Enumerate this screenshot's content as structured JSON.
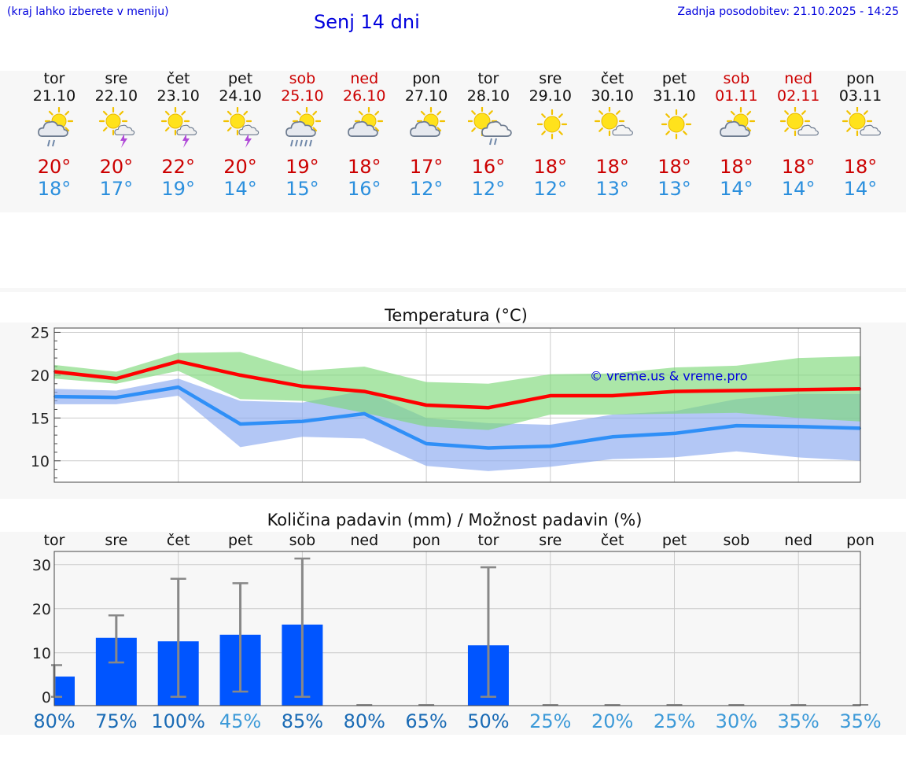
{
  "header": {
    "hint": "(kraj lahko izberete v meniju)",
    "title": "Senj 14 dni",
    "updated": "Zadnja posodobitev: 21.10.2025 - 14:25"
  },
  "days": [
    {
      "name": "tor",
      "date": "21.10",
      "weekend": false,
      "icon": "partly-cloudy-rain-icon",
      "max": "20°",
      "min": "18°",
      "pct": "80%",
      "pct_color": "#1a6bb5"
    },
    {
      "name": "sre",
      "date": "22.10",
      "weekend": false,
      "icon": "sun-cloud-thunder-icon",
      "max": "20°",
      "min": "17°",
      "pct": "75%",
      "pct_color": "#1a6bb5"
    },
    {
      "name": "čet",
      "date": "23.10",
      "weekend": false,
      "icon": "sun-cloud-thunder-icon",
      "max": "22°",
      "min": "19°",
      "pct": "100%",
      "pct_color": "#1a6bb5"
    },
    {
      "name": "pet",
      "date": "24.10",
      "weekend": false,
      "icon": "sun-cloud-thunder-icon",
      "max": "20°",
      "min": "14°",
      "pct": "45%",
      "pct_color": "#3d9ad8"
    },
    {
      "name": "sob",
      "date": "25.10",
      "weekend": true,
      "icon": "partly-cloudy-heavy-rain-icon",
      "max": "19°",
      "min": "15°",
      "pct": "85%",
      "pct_color": "#1a6bb5"
    },
    {
      "name": "ned",
      "date": "26.10",
      "weekend": true,
      "icon": "partly-cloudy-icon",
      "max": "18°",
      "min": "16°",
      "pct": "80%",
      "pct_color": "#1a6bb5"
    },
    {
      "name": "pon",
      "date": "27.10",
      "weekend": false,
      "icon": "partly-cloudy-icon",
      "max": "17°",
      "min": "12°",
      "pct": "65%",
      "pct_color": "#1a6bb5"
    },
    {
      "name": "tor",
      "date": "28.10",
      "weekend": false,
      "icon": "sun-cloud-rain-icon",
      "max": "16°",
      "min": "12°",
      "pct": "50%",
      "pct_color": "#1a6bb5"
    },
    {
      "name": "sre",
      "date": "29.10",
      "weekend": false,
      "icon": "sun-icon",
      "max": "18°",
      "min": "12°",
      "pct": "25%",
      "pct_color": "#3d9ad8"
    },
    {
      "name": "čet",
      "date": "30.10",
      "weekend": false,
      "icon": "sun-small-cloud-icon",
      "max": "18°",
      "min": "13°",
      "pct": "20%",
      "pct_color": "#3d9ad8"
    },
    {
      "name": "pet",
      "date": "31.10",
      "weekend": false,
      "icon": "sun-icon",
      "max": "18°",
      "min": "13°",
      "pct": "25%",
      "pct_color": "#3d9ad8"
    },
    {
      "name": "sob",
      "date": "01.11",
      "weekend": true,
      "icon": "partly-cloudy-icon",
      "max": "18°",
      "min": "14°",
      "pct": "30%",
      "pct_color": "#3d9ad8"
    },
    {
      "name": "ned",
      "date": "02.11",
      "weekend": true,
      "icon": "sun-small-cloud-icon",
      "max": "18°",
      "min": "14°",
      "pct": "35%",
      "pct_color": "#3d9ad8"
    },
    {
      "name": "pon",
      "date": "03.11",
      "weekend": false,
      "icon": "sun-small-cloud-icon",
      "max": "18°",
      "min": "14°",
      "pct": "35%",
      "pct_color": "#3d9ad8"
    }
  ],
  "chart_data": [
    {
      "type": "line",
      "title": "Temperatura (°C)",
      "watermark": "© vreme.us & vreme.pro",
      "ylim": [
        7.5,
        25.5
      ],
      "yticks": [
        10,
        15,
        20,
        25
      ],
      "x": [
        0,
        1,
        2,
        3,
        4,
        5,
        6,
        7,
        8,
        9,
        10,
        11,
        12,
        13
      ],
      "series": [
        {
          "name": "max",
          "color": "#ff0000",
          "values": [
            20.4,
            19.6,
            21.6,
            20.0,
            18.7,
            18.1,
            16.5,
            16.2,
            17.6,
            17.6,
            18.1,
            18.2,
            18.3,
            18.4
          ]
        },
        {
          "name": "min",
          "color": "#2f8ff7",
          "values": [
            17.5,
            17.4,
            18.6,
            14.3,
            14.6,
            15.5,
            12.0,
            11.5,
            11.7,
            12.8,
            13.2,
            14.1,
            14.0,
            13.8
          ]
        }
      ],
      "bands": [
        {
          "name": "max range",
          "color": "#7ed87a",
          "upper": [
            21.2,
            20.4,
            22.6,
            22.7,
            20.5,
            21.0,
            19.2,
            19.0,
            20.1,
            20.2,
            20.9,
            21.1,
            22.0,
            22.2
          ],
          "lower": [
            19.6,
            19.0,
            20.5,
            17.2,
            17.0,
            15.6,
            14.0,
            13.6,
            15.4,
            15.4,
            15.5,
            15.6,
            15.0,
            14.6
          ]
        },
        {
          "name": "min range",
          "color": "#8aa9f0",
          "upper": [
            18.4,
            18.2,
            19.6,
            17.0,
            16.8,
            18.2,
            15.0,
            14.4,
            14.2,
            15.4,
            15.8,
            17.2,
            17.8,
            17.8
          ],
          "lower": [
            16.6,
            16.6,
            17.6,
            11.6,
            12.8,
            12.6,
            9.4,
            8.8,
            9.3,
            10.2,
            10.4,
            11.1,
            10.4,
            10.0
          ]
        }
      ]
    },
    {
      "type": "bar",
      "title": "Količina padavin (mm) / Možnost padavin (%)",
      "categories": [
        "tor",
        "sre",
        "čet",
        "pet",
        "sob",
        "ned",
        "pon",
        "tor",
        "sre",
        "čet",
        "pet",
        "sob",
        "ned",
        "pon"
      ],
      "ylim": [
        -2,
        33
      ],
      "yticks": [
        0,
        10,
        20,
        30
      ],
      "values": [
        4.6,
        13.4,
        12.6,
        14.1,
        16.4,
        0,
        0,
        11.7,
        0,
        0,
        0,
        0,
        0,
        0
      ],
      "err_low": [
        0,
        7.8,
        0,
        1.2,
        0,
        0,
        0,
        0,
        0,
        0,
        0,
        0,
        0,
        0
      ],
      "err_high": [
        7.2,
        18.5,
        26.8,
        25.8,
        31.4,
        0,
        0,
        29.4,
        0,
        0,
        0,
        0,
        0,
        0
      ],
      "bar_color": "#0055ff",
      "err_color": "#888888"
    }
  ]
}
